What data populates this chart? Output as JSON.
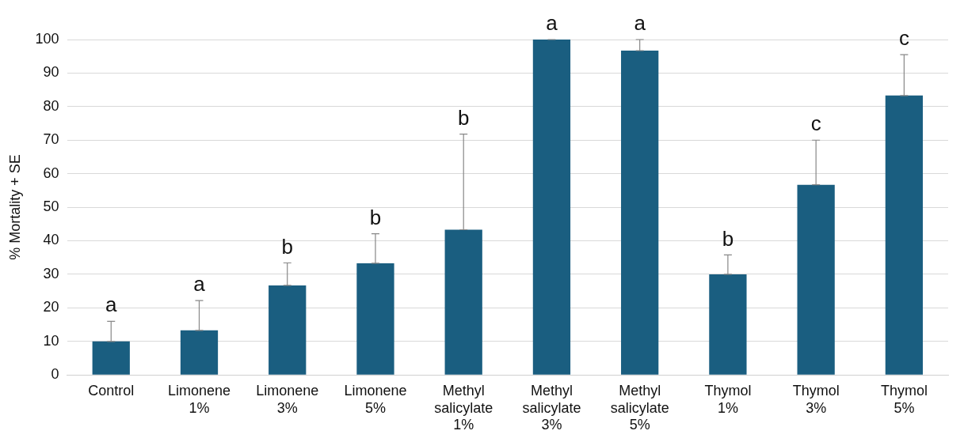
{
  "chart_data": {
    "type": "bar",
    "ylabel": "% Mortality + SE",
    "categories": [
      "Control",
      "Limonene 1%",
      "Limonene 3%",
      "Limonene 5%",
      "Methyl salicylate 1%",
      "Methyl salicylate 3%",
      "Methyl salicylate 5%",
      "Thymol 1%",
      "Thymol 3%",
      "Thymol 5%"
    ],
    "values": [
      10,
      13.3,
      26.7,
      33.3,
      43.3,
      100,
      96.7,
      30,
      56.7,
      83.3
    ],
    "errors": [
      [
        10,
        16
      ],
      [
        13.3,
        22.2
      ],
      [
        26.7,
        33.4
      ],
      [
        33.3,
        42.1
      ],
      [
        43.3,
        71.8
      ],
      [
        100,
        100
      ],
      [
        96.7,
        100
      ],
      [
        30,
        35.8
      ],
      [
        56.7,
        70
      ],
      [
        83.3,
        95.5
      ]
    ],
    "color": "#1a5e80",
    "ylim": [
      0,
      100
    ],
    "yticks": [
      0,
      10,
      20,
      30,
      40,
      50,
      60,
      70,
      80,
      90,
      100
    ],
    "grid": "y",
    "legend": false,
    "annotations": [
      {
        "text": "a",
        "x": "Control",
        "y": 16
      },
      {
        "text": "a",
        "x": "Limonene 1%",
        "y": 22.2
      },
      {
        "text": "b",
        "x": "Limonene 3%",
        "y": 33.4
      },
      {
        "text": "b",
        "x": "Limonene 5%",
        "y": 42.1
      },
      {
        "text": "b",
        "x": "Methyl salicylate 1%",
        "y": 71.8
      },
      {
        "text": "a",
        "x": "Methyl salicylate 3%",
        "y": 100
      },
      {
        "text": "a",
        "x": "Methyl salicylate 5%",
        "y": 100
      },
      {
        "text": "b",
        "x": "Thymol 1%",
        "y": 35.8
      },
      {
        "text": "c",
        "x": "Thymol 3%",
        "y": 70
      },
      {
        "text": "c",
        "x": "Thymol 5%",
        "y": 95.5
      }
    ]
  }
}
